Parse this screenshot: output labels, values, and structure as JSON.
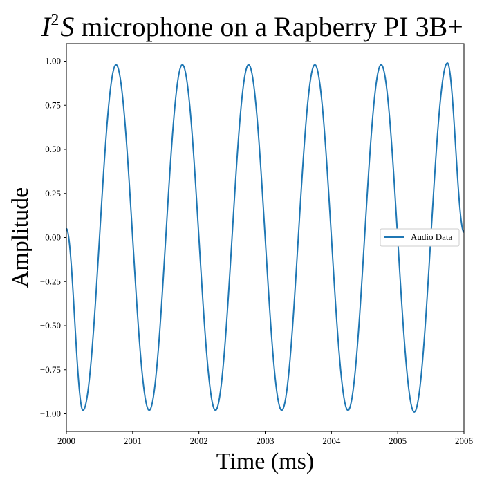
{
  "chart_data": {
    "type": "line",
    "title": {
      "prefix": "I",
      "superscript": "2",
      "suffix": "S",
      "rest": " microphone on a Rapberry PI 3B+"
    },
    "xlabel": "Time (ms)",
    "ylabel": "Amplitude",
    "xlim": [
      2000,
      2006
    ],
    "ylim": [
      -1.1,
      1.1
    ],
    "xticks": [
      2000,
      2001,
      2002,
      2003,
      2004,
      2005,
      2006
    ],
    "xtick_labels": [
      "2000",
      "2001",
      "2002",
      "2003",
      "2004",
      "2005",
      "2006"
    ],
    "yticks": [
      -1.0,
      -0.75,
      -0.5,
      -0.25,
      0.0,
      0.25,
      0.5,
      0.75,
      1.0
    ],
    "ytick_labels": [
      "−1.00",
      "−0.75",
      "−0.50",
      "−0.25",
      "0.00",
      "0.25",
      "0.50",
      "0.75",
      "1.00"
    ],
    "grid": false,
    "legend_position": "center-right",
    "series": [
      {
        "name": "Audio Data",
        "color": "#1f77b4",
        "x": [
          2000.0,
          2000.25,
          2000.75,
          2001.25,
          2001.75,
          2002.25,
          2002.75,
          2003.25,
          2003.75,
          2004.25,
          2004.75,
          2005.25,
          2005.75,
          2006.0
        ],
        "y": [
          0.05,
          -0.98,
          0.98,
          -0.98,
          0.98,
          -0.98,
          0.98,
          -0.98,
          0.98,
          -0.98,
          0.98,
          -0.99,
          0.99,
          0.03
        ]
      }
    ]
  }
}
